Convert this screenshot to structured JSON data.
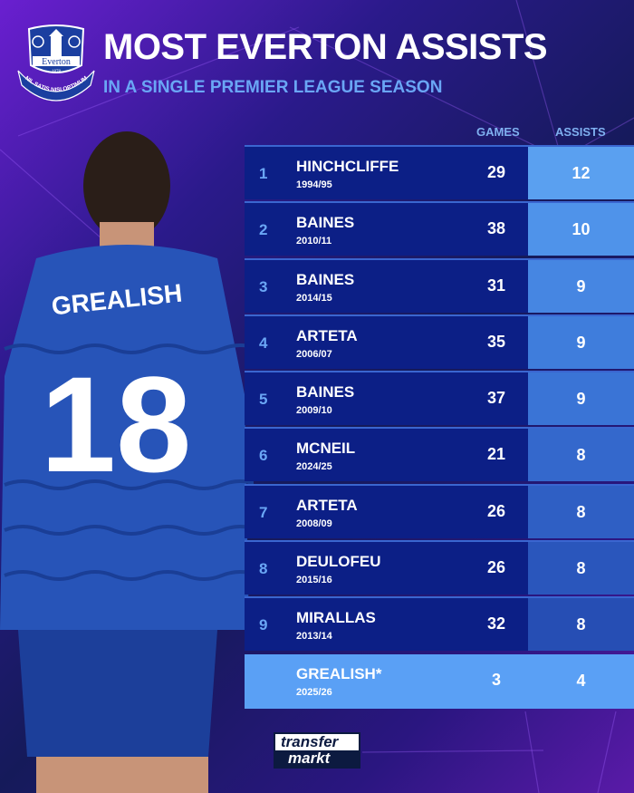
{
  "header": {
    "title": "MOST EVERTON ASSISTS",
    "subtitle": "IN A SINGLE PREMIER LEAGUE SEASON",
    "crest_text": "Everton",
    "crest_year": "1878",
    "crest_motto": "NIL SATIS NISI OPTIMUM"
  },
  "player_shirt": {
    "name": "GREALISH",
    "number": "18"
  },
  "columns": {
    "games": "GAMES",
    "assists": "ASSISTS"
  },
  "rows": [
    {
      "rank": "1",
      "name": "HINCHCLIFFE",
      "season": "1994/95",
      "games": "29",
      "assists": "12",
      "color": "#5aa0f0"
    },
    {
      "rank": "2",
      "name": "BAINES",
      "season": "2010/11",
      "games": "38",
      "assists": "10",
      "color": "#4f93ea"
    },
    {
      "rank": "3",
      "name": "BAINES",
      "season": "2014/15",
      "games": "31",
      "assists": "9",
      "color": "#4686e2"
    },
    {
      "rank": "4",
      "name": "ARTETA",
      "season": "2006/07",
      "games": "35",
      "assists": "9",
      "color": "#3f7ddc"
    },
    {
      "rank": "5",
      "name": "BAINES",
      "season": "2009/10",
      "games": "37",
      "assists": "9",
      "color": "#3a74d6"
    },
    {
      "rank": "6",
      "name": "MCNEIL",
      "season": "2024/25",
      "games": "21",
      "assists": "8",
      "color": "#3468cc"
    },
    {
      "rank": "7",
      "name": "ARTETA",
      "season": "2008/09",
      "games": "26",
      "assists": "8",
      "color": "#2f5fc4"
    },
    {
      "rank": "8",
      "name": "DEULOFEU",
      "season": "2015/16",
      "games": "26",
      "assists": "8",
      "color": "#2a56bc"
    },
    {
      "rank": "9",
      "name": "MIRALLAS",
      "season": "2013/14",
      "games": "32",
      "assists": "8",
      "color": "#264eb4"
    }
  ],
  "highlight": {
    "name": "GREALISH*",
    "season": "2025/26",
    "games": "3",
    "assists": "4"
  },
  "logo": {
    "line1": "transfer",
    "line2": "markt"
  }
}
